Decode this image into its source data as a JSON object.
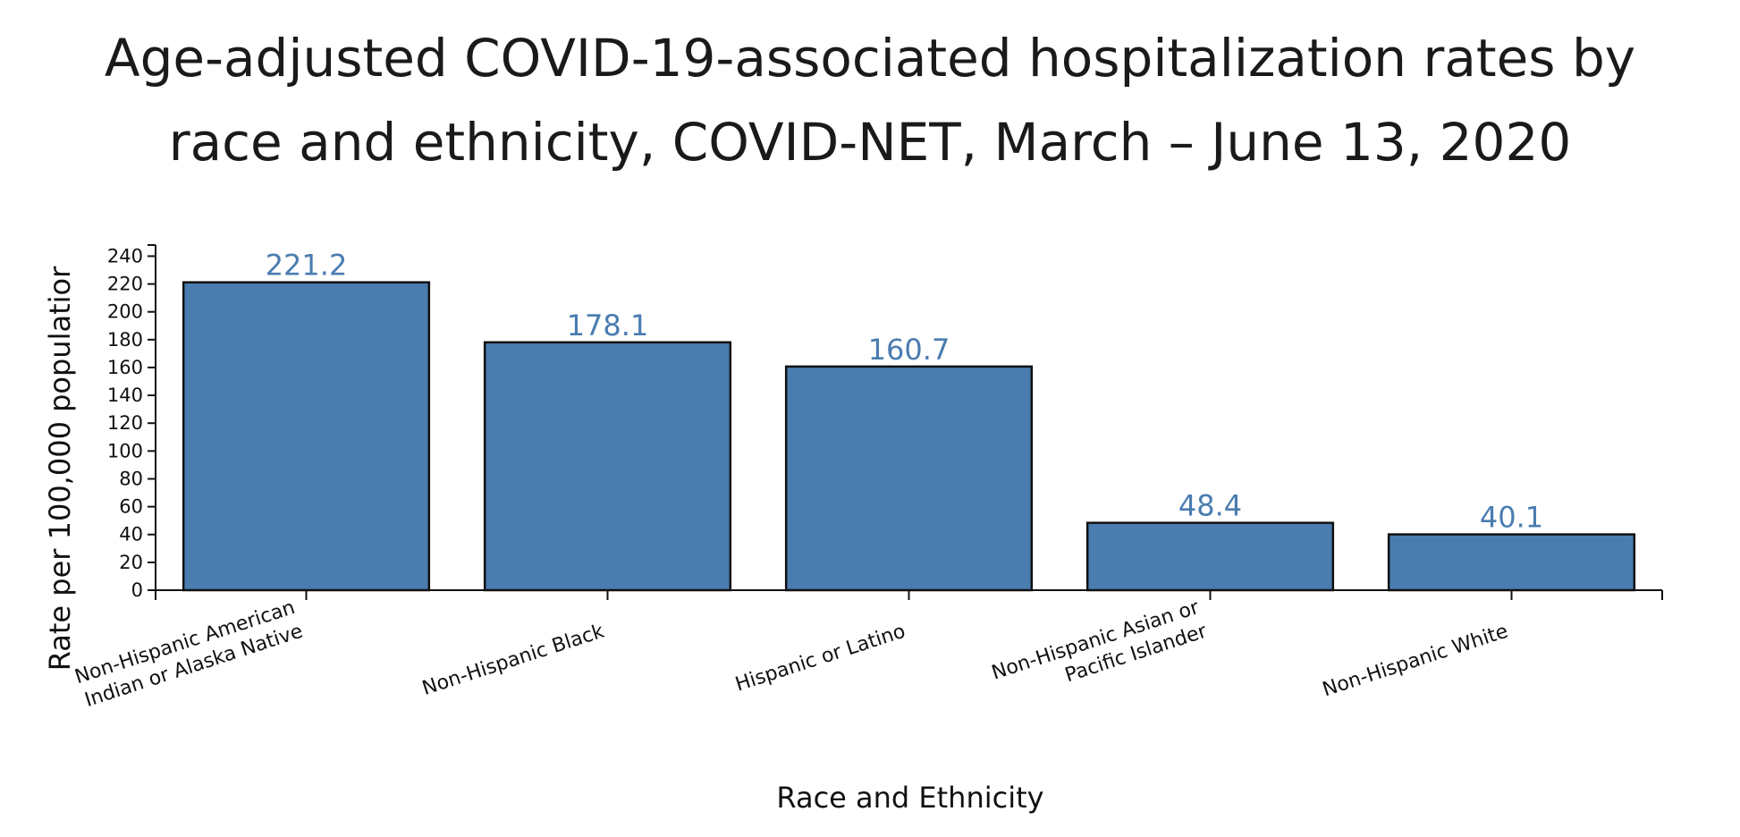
{
  "chart_data": {
    "type": "bar",
    "title_lines": [
      "Age-adjusted COVID-19-associated hospitalization rates by",
      "race and ethnicity, COVID-NET, March – June 13, 2020"
    ],
    "xlabel": "Race and Ethnicity",
    "ylabel": "Rate per 100,000 populatior",
    "categories": [
      [
        "Non-Hispanic American",
        "Indian or Alaska Native"
      ],
      [
        "Non-Hispanic Black"
      ],
      [
        "Hispanic or Latino"
      ],
      [
        "Non-Hispanic Asian or",
        "Pacific Islander"
      ],
      [
        "Non-Hispanic White"
      ]
    ],
    "values": [
      221.2,
      178.1,
      160.7,
      48.4,
      40.1
    ],
    "data_labels": [
      "221.2",
      "178.1",
      "160.7",
      "48.4",
      "40.1"
    ],
    "ylim": [
      0,
      248
    ],
    "yticks": [
      0,
      20,
      40,
      60,
      80,
      100,
      120,
      140,
      160,
      180,
      200,
      220,
      240
    ],
    "grid": false,
    "legend": "none",
    "bar_color": "#4a7cb0",
    "data_label_color": "#4a7cb0"
  }
}
